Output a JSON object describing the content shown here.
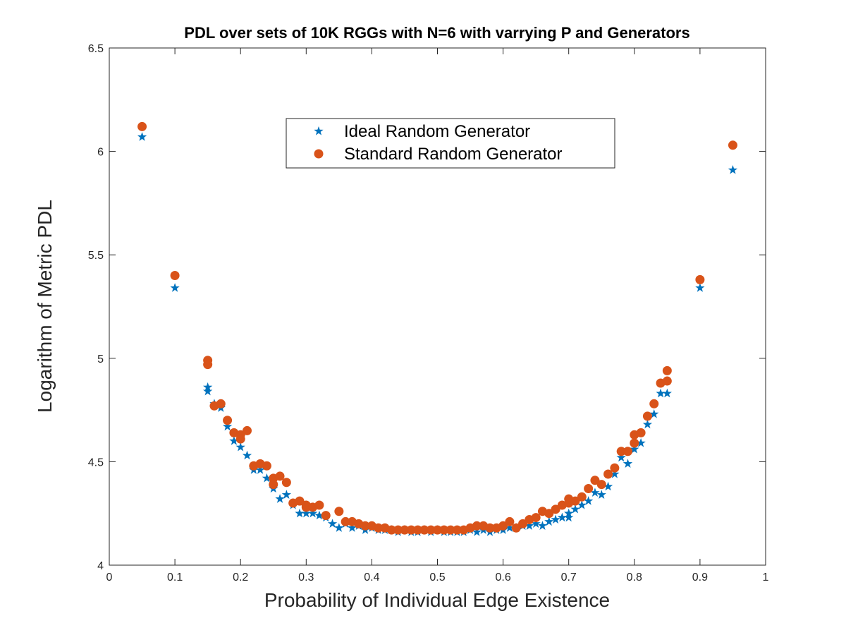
{
  "chart_data": {
    "type": "scatter",
    "title": "PDL over sets of 10K RGGs with N=6 with varrying P and Generators",
    "xlabel": "Probability of Individual Edge Existence",
    "ylabel": "Logarithm of Metric PDL",
    "xlim": [
      0,
      1
    ],
    "ylim": [
      4,
      6.5
    ],
    "xticks": [
      "0",
      "0.1",
      "0.2",
      "0.3",
      "0.4",
      "0.5",
      "0.6",
      "0.7",
      "0.8",
      "0.9",
      "1"
    ],
    "yticks": [
      "4",
      "4.5",
      "5",
      "5.5",
      "6",
      "6.5"
    ],
    "grid": false,
    "legend_position": "top-center",
    "series": [
      {
        "name": "Ideal Random Generator",
        "marker": "star",
        "color": "#0072BD",
        "x": [
          0.05,
          0.1,
          0.15,
          0.15,
          0.16,
          0.17,
          0.18,
          0.19,
          0.2,
          0.21,
          0.22,
          0.23,
          0.24,
          0.25,
          0.26,
          0.27,
          0.28,
          0.29,
          0.3,
          0.31,
          0.32,
          0.33,
          0.34,
          0.35,
          0.36,
          0.37,
          0.38,
          0.39,
          0.4,
          0.41,
          0.42,
          0.43,
          0.44,
          0.45,
          0.46,
          0.47,
          0.48,
          0.49,
          0.5,
          0.51,
          0.52,
          0.53,
          0.54,
          0.55,
          0.56,
          0.57,
          0.58,
          0.59,
          0.6,
          0.61,
          0.62,
          0.63,
          0.64,
          0.65,
          0.66,
          0.67,
          0.68,
          0.69,
          0.7,
          0.7,
          0.71,
          0.72,
          0.73,
          0.74,
          0.75,
          0.76,
          0.77,
          0.78,
          0.79,
          0.8,
          0.81,
          0.82,
          0.83,
          0.84,
          0.85,
          0.9,
          0.95
        ],
        "y": [
          6.07,
          5.34,
          4.86,
          4.84,
          4.78,
          4.76,
          4.67,
          4.6,
          4.57,
          4.53,
          4.46,
          4.46,
          4.42,
          4.37,
          4.32,
          4.34,
          4.29,
          4.25,
          4.25,
          4.25,
          4.24,
          4.23,
          4.2,
          4.18,
          4.2,
          4.18,
          4.19,
          4.17,
          4.18,
          4.17,
          4.17,
          4.17,
          4.16,
          4.17,
          4.16,
          4.16,
          4.17,
          4.16,
          4.17,
          4.16,
          4.16,
          4.16,
          4.16,
          4.17,
          4.16,
          4.17,
          4.16,
          4.17,
          4.17,
          4.18,
          4.18,
          4.19,
          4.19,
          4.2,
          4.19,
          4.21,
          4.22,
          4.23,
          4.23,
          4.25,
          4.27,
          4.29,
          4.31,
          4.35,
          4.34,
          4.38,
          4.44,
          4.52,
          4.49,
          4.56,
          4.59,
          4.68,
          4.73,
          4.83,
          4.83,
          5.34,
          5.91
        ]
      },
      {
        "name": "Standard Random Generator",
        "marker": "circle",
        "color": "#D95319",
        "x": [
          0.05,
          0.1,
          0.15,
          0.15,
          0.16,
          0.17,
          0.18,
          0.19,
          0.2,
          0.2,
          0.21,
          0.22,
          0.23,
          0.24,
          0.25,
          0.25,
          0.26,
          0.27,
          0.28,
          0.29,
          0.3,
          0.3,
          0.31,
          0.32,
          0.33,
          0.35,
          0.36,
          0.37,
          0.38,
          0.39,
          0.4,
          0.41,
          0.42,
          0.43,
          0.44,
          0.45,
          0.46,
          0.47,
          0.48,
          0.49,
          0.5,
          0.51,
          0.52,
          0.53,
          0.54,
          0.55,
          0.56,
          0.57,
          0.58,
          0.59,
          0.6,
          0.61,
          0.62,
          0.63,
          0.64,
          0.65,
          0.66,
          0.67,
          0.68,
          0.69,
          0.7,
          0.7,
          0.71,
          0.72,
          0.73,
          0.74,
          0.75,
          0.76,
          0.77,
          0.78,
          0.79,
          0.8,
          0.8,
          0.81,
          0.82,
          0.83,
          0.84,
          0.85,
          0.85,
          0.9,
          0.95
        ],
        "y": [
          6.12,
          5.4,
          4.99,
          4.97,
          4.77,
          4.78,
          4.7,
          4.64,
          4.63,
          4.61,
          4.65,
          4.48,
          4.49,
          4.48,
          4.42,
          4.39,
          4.43,
          4.4,
          4.3,
          4.31,
          4.29,
          4.28,
          4.28,
          4.29,
          4.24,
          4.26,
          4.21,
          4.21,
          4.2,
          4.19,
          4.19,
          4.18,
          4.18,
          4.17,
          4.17,
          4.17,
          4.17,
          4.17,
          4.17,
          4.17,
          4.17,
          4.17,
          4.17,
          4.17,
          4.17,
          4.18,
          4.19,
          4.19,
          4.18,
          4.18,
          4.19,
          4.21,
          4.18,
          4.2,
          4.22,
          4.23,
          4.26,
          4.25,
          4.27,
          4.29,
          4.3,
          4.32,
          4.31,
          4.33,
          4.37,
          4.41,
          4.39,
          4.44,
          4.47,
          4.55,
          4.55,
          4.59,
          4.63,
          4.64,
          4.72,
          4.78,
          4.88,
          4.89,
          4.94,
          5.38,
          6.03
        ]
      }
    ]
  }
}
